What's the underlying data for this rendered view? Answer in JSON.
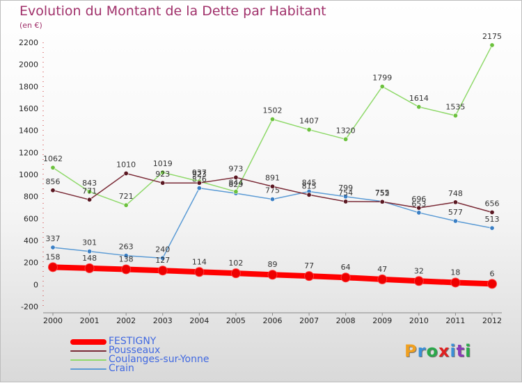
{
  "header": {
    "title": "Evolution du Montant de la Dette par Habitant",
    "unit": "(en €)"
  },
  "logo": {
    "text": "Proxiti",
    "letter_colors": [
      "#f0a020",
      "#3a8fd8",
      "#2aa84a",
      "#e02020",
      "#3a8fd8",
      "#8a3ab8",
      "#2aa84a"
    ]
  },
  "chart_data": {
    "type": "line",
    "title": "Evolution du Montant de la Dette par Habitant",
    "ylabel": "(en €)",
    "xlabel": "",
    "categories": [
      "2000",
      "2001",
      "2002",
      "2003",
      "2004",
      "2005",
      "2006",
      "2007",
      "2008",
      "2009",
      "2010",
      "2011",
      "2012"
    ],
    "ylim": [
      -200,
      2200
    ],
    "yticks": [
      -200,
      0,
      200,
      400,
      600,
      800,
      1000,
      1200,
      1400,
      1600,
      1800,
      2000,
      2200
    ],
    "grid": false,
    "legend": "bottom-left",
    "series": [
      {
        "name": "Crain",
        "color": "#5b9bd5",
        "dot": "#3b7fc4",
        "values": [
          337,
          301,
          263,
          240,
          876,
          829,
          775,
          845,
          799,
          755,
          653,
          577,
          513
        ]
      },
      {
        "name": "Coulanges-sur-Yonne",
        "color": "#8fd96a",
        "dot": "#6cc13e",
        "values": [
          1062,
          843,
          721,
          1019,
          937,
          844,
          1502,
          1407,
          1320,
          1799,
          1614,
          1535,
          2175
        ]
      },
      {
        "name": "Pousseaux",
        "color": "#7a2a36",
        "dot": "#5a1822",
        "values": [
          856,
          771,
          1010,
          923,
          923,
          973,
          891,
          815,
          754,
          752,
          696,
          748,
          656
        ]
      },
      {
        "name": "FESTIGNY",
        "color": "#ff0000",
        "dot": "#ee0000",
        "values": [
          158,
          148,
          138,
          127,
          114,
          102,
          89,
          77,
          64,
          47,
          32,
          18,
          6
        ]
      }
    ]
  }
}
